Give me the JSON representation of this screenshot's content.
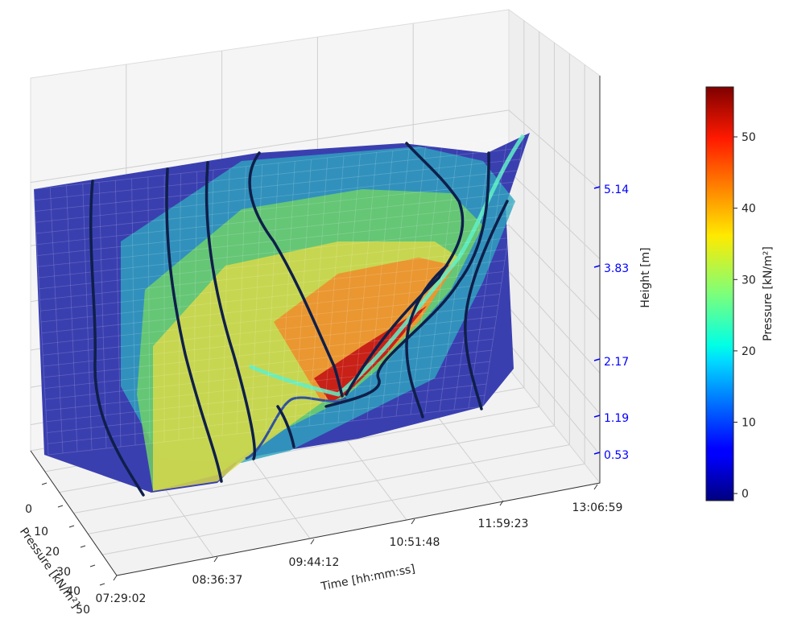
{
  "chart_data": {
    "type": "surface3d",
    "title": "",
    "axes": {
      "x": {
        "label": "Time [hh:mm:ss]",
        "ticks": [
          "07:29:02",
          "08:36:37",
          "09:44:12",
          "10:51:48",
          "11:59:23",
          "13:06:59"
        ]
      },
      "y": {
        "label": "Pressure [kN/m²]",
        "ticks": [
          "0",
          "10",
          "20",
          "30",
          "40",
          "50"
        ],
        "range": [
          0,
          57
        ]
      },
      "z": {
        "label": "Height [m]",
        "ticks": [
          "0.53",
          "1.19",
          "2.17",
          "3.83",
          "5.14"
        ],
        "tick_color": "#0000ff"
      }
    },
    "colorbar": {
      "label": "Pressure [kN/m²]",
      "ticks": [
        "0",
        "10",
        "20",
        "30",
        "40",
        "50"
      ],
      "range": [
        -1,
        57
      ],
      "colormap": "jet"
    },
    "profile_count": 9,
    "peak": {
      "time": "10:00",
      "height": 1.5,
      "pressure": 55
    },
    "grid": true
  }
}
